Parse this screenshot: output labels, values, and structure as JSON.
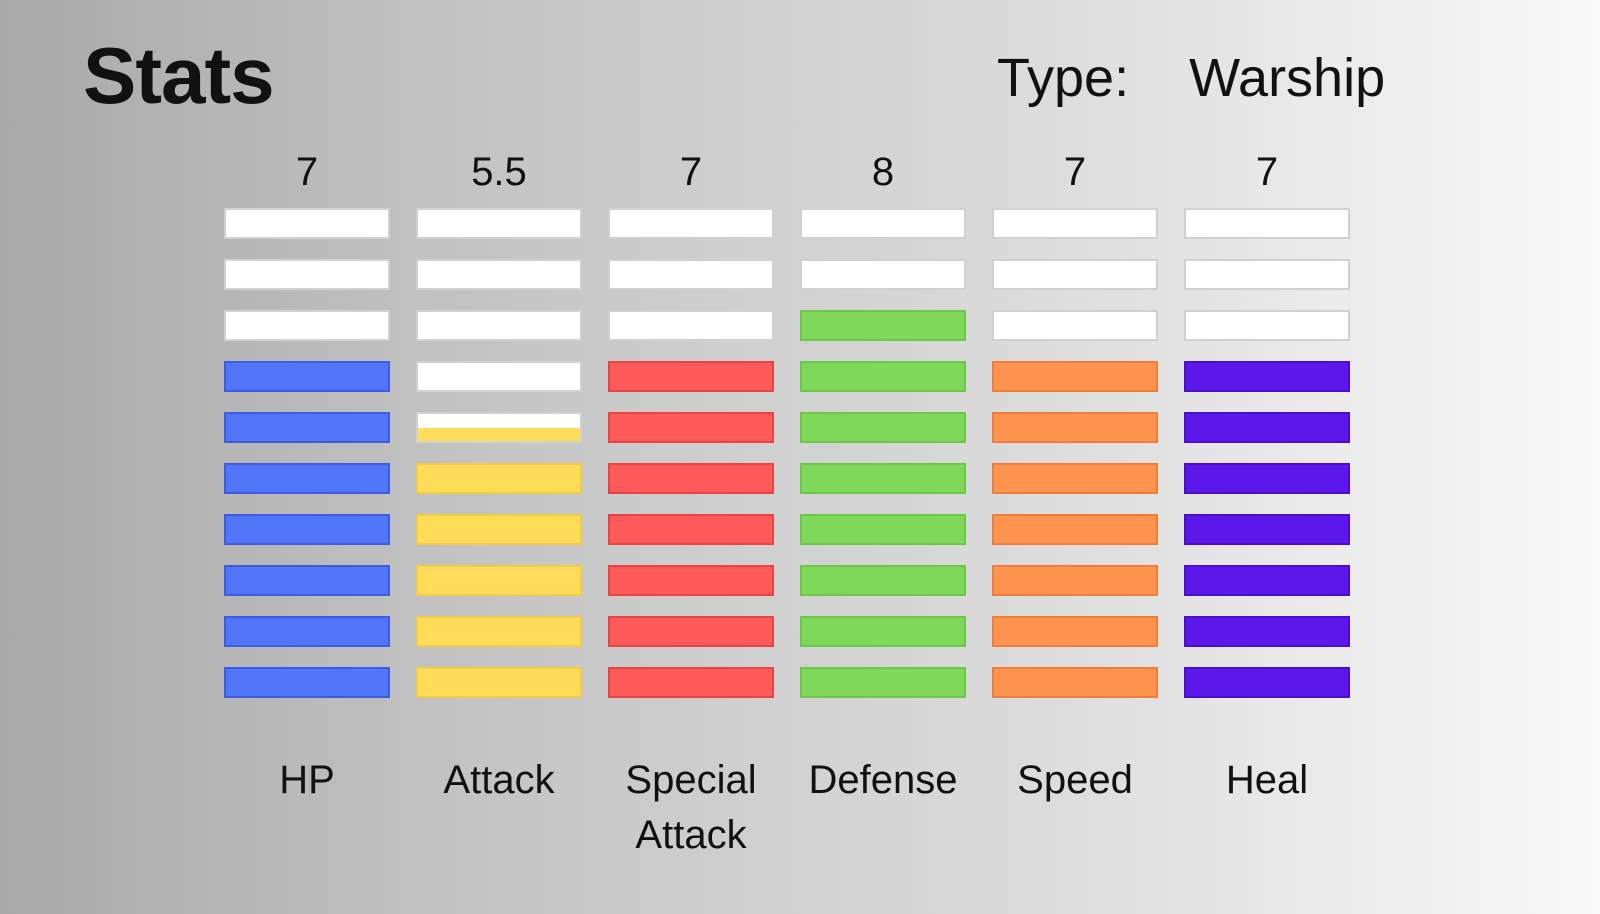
{
  "header": {
    "title": "Stats",
    "type_label": "Type:",
    "type_value": "Warship"
  },
  "segments_per_stat": 10,
  "stats": [
    {
      "label": "HP",
      "value_text": "7",
      "value": 7,
      "color": "#5276fa",
      "border": "#3f5ce0"
    },
    {
      "label": "Attack",
      "value_text": "5.5",
      "value": 5.5,
      "color": "#ffdc5a",
      "border": "#f2cc45"
    },
    {
      "label": "Special\nAttack",
      "value_text": "7",
      "value": 7,
      "color": "#ff5a5a",
      "border": "#e84444"
    },
    {
      "label": "Defense",
      "value_text": "8",
      "value": 8,
      "color": "#80d85a",
      "border": "#6cc848"
    },
    {
      "label": "Speed",
      "value_text": "7",
      "value": 7,
      "color": "#ff944e",
      "border": "#f07e3a"
    },
    {
      "label": "Heal",
      "value_text": "7",
      "value": 7,
      "color": "#5c18e8",
      "border": "#4a0ecc"
    }
  ]
}
